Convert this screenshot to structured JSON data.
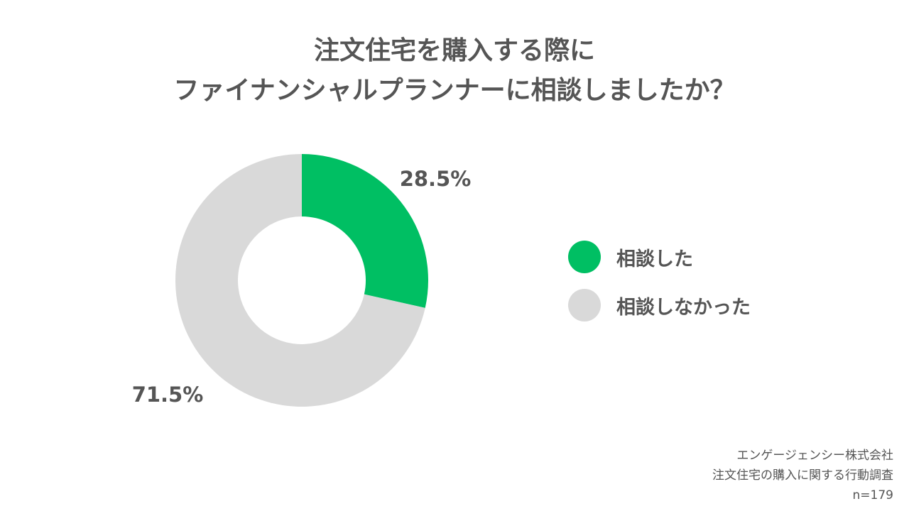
{
  "chart_data": {
    "type": "pie",
    "donut": true,
    "title": "注文住宅を購入する際に ファイナンシャルプランナーに相談しましたか？",
    "title_lines": [
      "注文住宅を購入する際に",
      "ファイナンシャルプランナーに相談しましたか？"
    ],
    "categories": [
      "相談した",
      "相談しなかった"
    ],
    "values": [
      28.5,
      71.5
    ],
    "value_labels": [
      "28.5%",
      "71.5%"
    ],
    "colors": [
      "#00BF63",
      "#D9D9D9"
    ],
    "legend_position": "right"
  },
  "source": {
    "lines": [
      "エンゲージェンシー株式会社",
      "注文住宅の購入に関する行動調査",
      "n=179"
    ]
  }
}
